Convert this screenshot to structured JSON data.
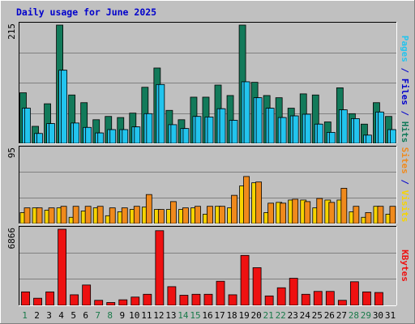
{
  "colors": {
    "background": "#c0c0c0",
    "plot_bg": "#c0c0c0",
    "title": "#0000cc",
    "gridline": "#808080",
    "weekend_day": "#1a7a4a",
    "weekday_day": "#0000cc",
    "hits": "#127a5a",
    "files": "#22c4ee",
    "pages": "#22c4ee",
    "visits": "#f7d400",
    "sites": "#f08a1c",
    "kbytes": "#ee1111"
  },
  "chart_data": [
    {
      "id": "hits-files-pages",
      "type": "bar",
      "title": "Daily usage for June 2025",
      "y_tick_label": "215",
      "ylim": [
        0,
        215
      ],
      "grid": true,
      "categories": [
        "1",
        "2",
        "3",
        "4",
        "5",
        "6",
        "7",
        "8",
        "9",
        "10",
        "11",
        "12",
        "13",
        "14",
        "15",
        "16",
        "17",
        "18",
        "19",
        "20",
        "21",
        "22",
        "23",
        "24",
        "25",
        "26",
        "27",
        "28",
        "29",
        "30",
        "31"
      ],
      "weekend_days": [
        1,
        7,
        8,
        14,
        15,
        21,
        22,
        28,
        29
      ],
      "series": [
        {
          "name": "Hits",
          "color_key": "hits",
          "values": [
            92,
            31,
            72,
            215,
            88,
            74,
            43,
            49,
            47,
            55,
            102,
            137,
            60,
            43,
            84,
            84,
            106,
            87,
            215,
            111,
            87,
            83,
            64,
            90,
            88,
            39,
            101,
            54,
            35,
            74,
            49
          ]
        },
        {
          "name": "Files",
          "color_key": "files",
          "values": [
            64,
            18,
            36,
            133,
            37,
            29,
            19,
            25,
            25,
            30,
            54,
            107,
            34,
            27,
            49,
            48,
            63,
            42,
            112,
            83,
            64,
            47,
            50,
            53,
            35,
            20,
            61,
            45,
            15,
            57,
            25
          ]
        },
        {
          "name": "Pages",
          "color_key": "pages",
          "values": [
            64,
            18,
            36,
            133,
            37,
            29,
            19,
            25,
            25,
            30,
            54,
            107,
            34,
            27,
            49,
            48,
            63,
            42,
            112,
            83,
            64,
            47,
            50,
            53,
            35,
            20,
            61,
            45,
            15,
            57,
            25
          ]
        }
      ],
      "right_labels": [
        {
          "text": "Pages",
          "color_key": "pages"
        },
        {
          "text": " / ",
          "color_key": "weekday_day"
        },
        {
          "text": "Files",
          "color_key": "weekday_day"
        },
        {
          "text": " / ",
          "color_key": "weekday_day"
        },
        {
          "text": "Hits",
          "color_key": "hits"
        }
      ]
    },
    {
      "id": "visits-sites",
      "type": "bar",
      "y_tick_label": "95",
      "ylim": [
        0,
        95
      ],
      "grid": true,
      "series": [
        {
          "name": "Visits",
          "color_key": "visits",
          "values": [
            14,
            20,
            17,
            20,
            8,
            16,
            20,
            10,
            15,
            18,
            21,
            18,
            18,
            18,
            20,
            12,
            22,
            20,
            48,
            52,
            14,
            27,
            30,
            30,
            20,
            30,
            30,
            15,
            8,
            22,
            12
          ]
        },
        {
          "name": "Sites",
          "color_key": "sites",
          "values": [
            20,
            20,
            20,
            22,
            22,
            22,
            22,
            20,
            20,
            22,
            37,
            18,
            28,
            20,
            22,
            22,
            22,
            36,
            60,
            53,
            26,
            26,
            31,
            28,
            32,
            27,
            45,
            22,
            14,
            22,
            22
          ]
        }
      ],
      "right_labels": [
        {
          "text": "Sites",
          "color_key": "sites"
        },
        {
          "text": " / ",
          "color_key": "weekday_day"
        },
        {
          "text": "Visits",
          "color_key": "visits"
        }
      ]
    },
    {
      "id": "kbytes",
      "type": "bar",
      "y_tick_label": "6866",
      "ylim": [
        0,
        6866
      ],
      "grid": true,
      "series": [
        {
          "name": "KBytes",
          "color_key": "kbytes",
          "values": [
            1216,
            644,
            1216,
            6866,
            955,
            1836,
            456,
            259,
            503,
            748,
            1002,
            6735,
            1687,
            913,
            1002,
            1002,
            2175,
            955,
            4506,
            3399,
            852,
            1588,
            2445,
            1002,
            1260,
            1260,
            457,
            2131,
            1216,
            1163,
            0
          ]
        }
      ],
      "right_labels": [
        {
          "text": "KBytes",
          "color_key": "kbytes"
        }
      ]
    }
  ]
}
